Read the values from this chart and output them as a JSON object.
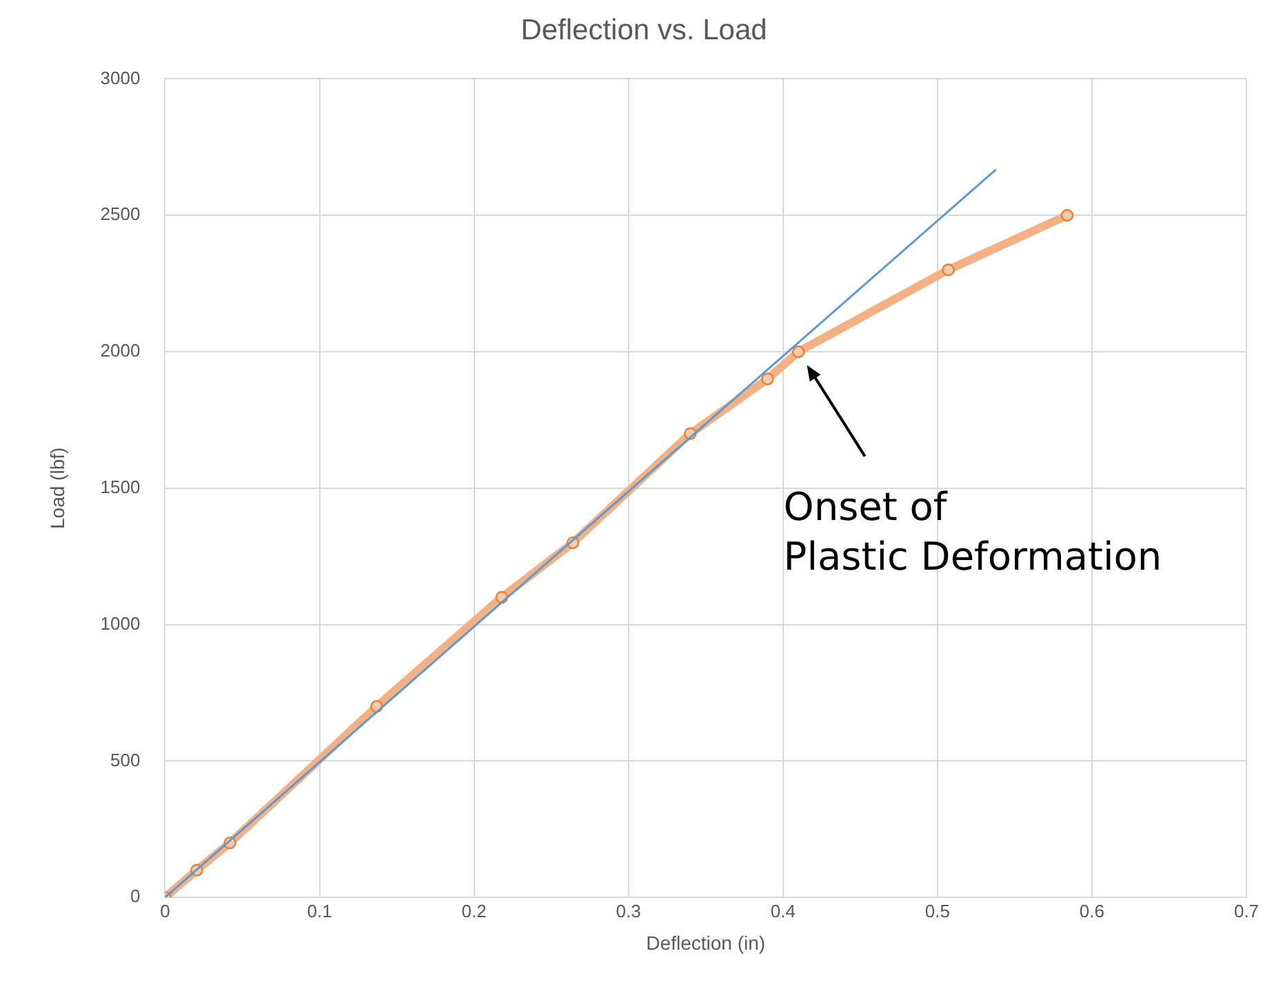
{
  "chart_data": {
    "type": "line",
    "title": "Deflection vs. Load",
    "xlabel": "Deflection (in)",
    "ylabel": "Load (lbf)",
    "xlim": [
      0,
      0.7
    ],
    "xticks": [
      0,
      0.1,
      0.2,
      0.3,
      0.4,
      0.5,
      0.6,
      0.7
    ],
    "ylim": [
      0,
      3000
    ],
    "yticks": [
      0,
      500,
      1000,
      1500,
      2000,
      2500,
      3000
    ],
    "grid": true,
    "legend": false,
    "series": [
      {
        "type": "line",
        "color": "#5b9bd5",
        "x": [
          0,
          0.5375
        ],
        "values": [
          0,
          2666
        ]
      },
      {
        "type": "line",
        "color": "#f4b183",
        "x": [
          0,
          0.0205,
          0.042,
          0.137,
          0.218,
          0.264,
          0.34,
          0.39,
          0.41,
          0.507,
          0.584
        ],
        "values": [
          0,
          100,
          200,
          700,
          1100,
          1300,
          1700,
          1900,
          2000,
          2300,
          2500
        ],
        "marker": "circle"
      }
    ],
    "annotations": [
      "Onset of\nPlastic Deformation"
    ]
  }
}
